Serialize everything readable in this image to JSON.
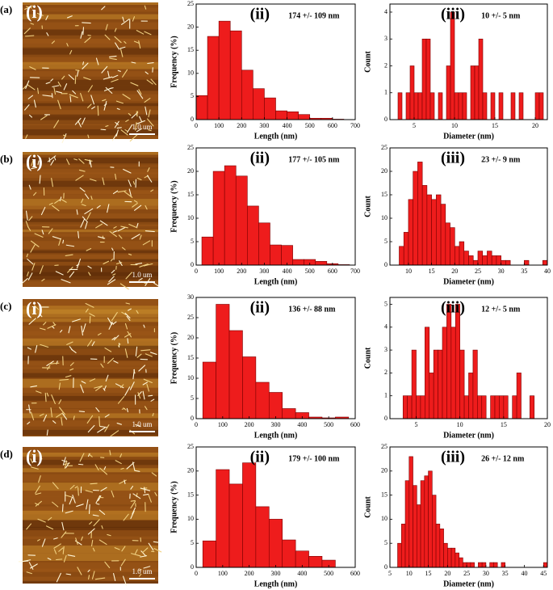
{
  "panels": [
    {
      "label": "(a)",
      "image": {
        "label": "(i)",
        "scale_bar": "1.0 um"
      }
    },
    {
      "label": "(b)",
      "image": {
        "label": "(i)",
        "scale_bar": "1.0 um"
      }
    },
    {
      "label": "(c)",
      "image": {
        "label": "(i)",
        "scale_bar": "1.0 um"
      }
    },
    {
      "label": "(d)",
      "image": {
        "label": "(i)",
        "scale_bar": "1.0 um"
      }
    }
  ],
  "chart_data": [
    {
      "type": "histogram",
      "panel_label": "(ii)",
      "annotation": "174 +/- 109 nm",
      "xlabel": "Length (nm)",
      "ylabel": "Frequency (%)",
      "color": "#ee1c1c",
      "edgecolor": "#7a0000",
      "bins": [
        0,
        50,
        100,
        150,
        200,
        250,
        300,
        350,
        400,
        450,
        500,
        550,
        600,
        650
      ],
      "values": [
        5.2,
        18,
        21.3,
        19.2,
        10.7,
        6.7,
        4.7,
        1.9,
        1.7,
        1.1,
        0.3,
        0.3,
        0.1
      ],
      "xlim": [
        0,
        700
      ],
      "xticks": [
        0,
        100,
        200,
        300,
        400,
        500,
        600,
        700
      ],
      "ylim": [
        0,
        25
      ],
      "yticks": [
        0,
        5,
        10,
        15,
        20,
        25
      ]
    },
    {
      "type": "histogram",
      "panel_label": "(iii)",
      "annotation": "10 +/- 5 nm",
      "xlabel": "Diameter (nm)",
      "ylabel": "Count",
      "color": "#ee1c1c",
      "edgecolor": "#7a0000",
      "bins": [
        2.5,
        3,
        3.5,
        4,
        4.5,
        5,
        5.5,
        6,
        6.5,
        7,
        7.5,
        8,
        8.5,
        9,
        9.5,
        10,
        10.5,
        11,
        11.5,
        12,
        12.5,
        13,
        13.5,
        14,
        14.5,
        15,
        15.5,
        16,
        16.5,
        17,
        17.5,
        18,
        18.5,
        19,
        19.5,
        20,
        20.5,
        21
      ],
      "values": [
        0,
        1,
        0,
        1,
        2,
        1,
        1,
        3,
        3,
        1,
        0,
        1,
        0,
        2,
        4,
        1,
        1,
        1,
        0,
        2,
        2,
        3,
        1,
        0,
        1,
        0,
        1,
        0,
        0,
        1,
        0,
        1,
        0,
        0,
        0,
        1,
        1
      ],
      "xlim": [
        2,
        21.5
      ],
      "xticks": [
        5,
        10,
        15,
        20
      ],
      "ylim": [
        0,
        4.3
      ],
      "yticks": [
        0,
        1,
        2,
        3,
        4
      ]
    },
    {
      "type": "histogram",
      "panel_label": "(ii)",
      "annotation": "177 +/- 105 nm",
      "xlabel": "Length (nm)",
      "ylabel": "Frequency (%)",
      "color": "#ee1c1c",
      "edgecolor": "#7a0000",
      "bins": [
        25,
        75,
        125,
        175,
        225,
        275,
        325,
        375,
        425,
        475,
        525,
        575,
        625,
        675
      ],
      "values": [
        6,
        20,
        21.2,
        19,
        12.6,
        9,
        4.3,
        4.2,
        1.2,
        1.2,
        0.8,
        0.3,
        0.1
      ],
      "xlim": [
        0,
        700
      ],
      "xticks": [
        0,
        100,
        200,
        300,
        400,
        500,
        600,
        700
      ],
      "ylim": [
        0,
        25
      ],
      "yticks": [
        0,
        5,
        10,
        15,
        20,
        25
      ]
    },
    {
      "type": "histogram",
      "panel_label": "(iii)",
      "annotation": "23 +/- 9 nm",
      "xlabel": "Diameter (nm)",
      "ylabel": "Count",
      "color": "#ee1c1c",
      "edgecolor": "#7a0000",
      "bins": [
        8,
        9,
        10,
        11,
        12,
        13,
        14,
        15,
        16,
        17,
        18,
        19,
        20,
        21,
        22,
        23,
        24,
        25,
        26,
        27,
        28,
        29,
        30,
        31,
        32,
        33,
        34,
        35,
        36,
        37,
        38,
        39,
        40
      ],
      "values": [
        4,
        7,
        14,
        20,
        22,
        17,
        15,
        14,
        15,
        13,
        9,
        8,
        4,
        5,
        3,
        2,
        1,
        3,
        2,
        3,
        2,
        2,
        1,
        1,
        0,
        0,
        0,
        1,
        0,
        0,
        0,
        1
      ],
      "xlim": [
        6,
        40
      ],
      "xticks": [
        10,
        15,
        20,
        25,
        30,
        35,
        40
      ],
      "ylim": [
        0,
        25
      ],
      "yticks": [
        0,
        5,
        10,
        15,
        20,
        25
      ]
    },
    {
      "type": "histogram",
      "panel_label": "(ii)",
      "annotation": "136 +/- 88 nm",
      "xlabel": "Length (nm)",
      "ylabel": "Frequency (%)",
      "color": "#ee1c1c",
      "edgecolor": "#7a0000",
      "bins": [
        25,
        75,
        125,
        175,
        225,
        275,
        325,
        375,
        425,
        475,
        525,
        575
      ],
      "values": [
        14,
        28.3,
        21.8,
        15.3,
        9,
        6.5,
        2.5,
        1.5,
        0.4,
        0.2,
        0.4
      ],
      "xlim": [
        0,
        600
      ],
      "xticks": [
        0,
        100,
        200,
        300,
        400,
        500,
        600
      ],
      "ylim": [
        0,
        30
      ],
      "yticks": [
        0,
        5,
        10,
        15,
        20,
        25,
        30
      ]
    },
    {
      "type": "histogram",
      "panel_label": "(iii)",
      "annotation": "12 +/- 5 nm",
      "xlabel": "Diameter (nm)",
      "ylabel": "Count",
      "color": "#ee1c1c",
      "edgecolor": "#7a0000",
      "bins": [
        3.5,
        4,
        4.5,
        5,
        5.5,
        6,
        6.5,
        7,
        7.5,
        8,
        8.5,
        9,
        9.5,
        10,
        10.5,
        11,
        11.5,
        12,
        12.5,
        13,
        13.5,
        14,
        14.5,
        15,
        15.5,
        16,
        16.5,
        17,
        17.5,
        18,
        18.5
      ],
      "values": [
        1,
        1,
        3,
        1,
        1,
        4,
        2,
        3,
        3,
        4,
        5,
        4,
        5,
        3,
        1,
        2,
        3,
        1,
        1,
        0,
        1,
        1,
        1,
        1,
        0,
        1,
        2,
        0,
        0,
        1
      ],
      "xlim": [
        2,
        20
      ],
      "xticks": [
        5,
        10,
        15,
        20
      ],
      "ylim": [
        0,
        5.3
      ],
      "yticks": [
        0,
        1,
        2,
        3,
        4,
        5
      ]
    },
    {
      "type": "histogram",
      "panel_label": "(ii)",
      "annotation": "179 +/- 100 nm",
      "xlabel": "Length (nm)",
      "ylabel": "Frequency (%)",
      "color": "#ee1c1c",
      "edgecolor": "#7a0000",
      "bins": [
        25,
        75,
        125,
        175,
        225,
        275,
        325,
        375,
        425,
        475,
        525
      ],
      "values": [
        5.5,
        20.3,
        17.3,
        21.7,
        12.6,
        10,
        5.7,
        3.4,
        2.3,
        1.5
      ],
      "xlim": [
        0,
        600
      ],
      "xticks": [
        0,
        100,
        200,
        300,
        400,
        500,
        600
      ],
      "ylim": [
        0,
        25
      ],
      "yticks": [
        0,
        5,
        10,
        15,
        20,
        25
      ]
    },
    {
      "type": "histogram",
      "panel_label": "(iii)",
      "annotation": "26 +/- 12 nm",
      "xlabel": "Diameter (nm)",
      "ylabel": "Count",
      "color": "#ee1c1c",
      "edgecolor": "#7a0000",
      "bins": [
        7,
        8,
        9,
        10,
        11,
        12,
        13,
        14,
        15,
        16,
        17,
        18,
        19,
        20,
        21,
        22,
        23,
        24,
        25,
        26,
        27,
        28,
        29,
        30,
        31,
        32,
        33,
        34,
        35,
        36,
        37,
        38,
        39,
        40,
        41,
        42,
        43,
        44,
        45,
        46
      ],
      "values": [
        5,
        9,
        18,
        23,
        17,
        13,
        18,
        19,
        20,
        15,
        9,
        8,
        5,
        4,
        4,
        3,
        2,
        1,
        1,
        1,
        0,
        1,
        1,
        0,
        1,
        1,
        0,
        1,
        0,
        0,
        0,
        0,
        0,
        0,
        0,
        0,
        0,
        0,
        1
      ],
      "xlim": [
        5,
        46
      ],
      "xticks": [
        5,
        10,
        15,
        20,
        25,
        30,
        35,
        40,
        45
      ],
      "ylim": [
        0,
        25
      ],
      "yticks": [
        0,
        5,
        10,
        15,
        20,
        25
      ]
    }
  ]
}
